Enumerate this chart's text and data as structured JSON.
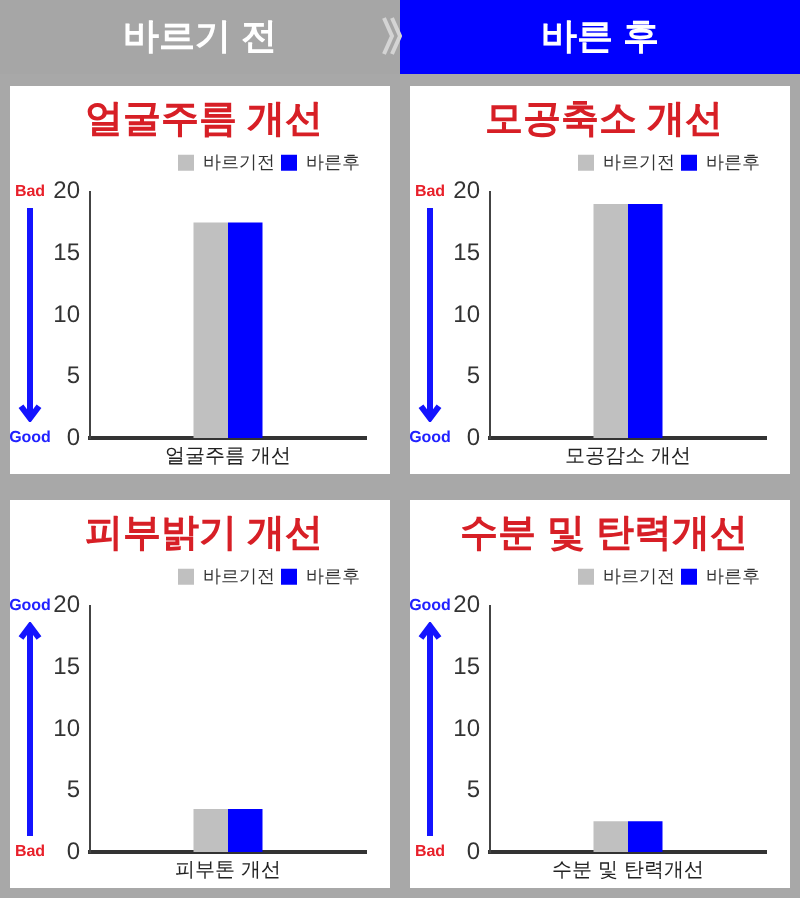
{
  "chart_data": [
    {
      "type": "other",
      "annotations": [
        "바르기 전",
        "바른 후"
      ]
    },
    {
      "type": "bar",
      "title": "얼굴주름 개선",
      "categories": [
        "얼굴주름 개선"
      ],
      "series": [
        {
          "name": "바르기전",
          "color": "#c0c0c0",
          "values": [
            17.5
          ]
        },
        {
          "name": "바른후",
          "color": "#0000ff",
          "values": [
            17.5
          ]
        }
      ],
      "ylim": [
        0,
        20
      ],
      "yticks": [
        0,
        5,
        10,
        15,
        20
      ],
      "grid": false,
      "legend": "top right",
      "annotations": [
        "Bad",
        "Good"
      ]
    },
    {
      "type": "bar",
      "title": "모공축소 개선",
      "categories": [
        "모공감소 개선"
      ],
      "series": [
        {
          "name": "바르기전",
          "color": "#c0c0c0",
          "values": [
            19
          ]
        },
        {
          "name": "바른후",
          "color": "#0000ff",
          "values": [
            19
          ]
        }
      ],
      "ylim": [
        0,
        20
      ],
      "yticks": [
        0,
        5,
        10,
        15,
        20
      ],
      "grid": false,
      "legend": "top right",
      "annotations": [
        "Bad",
        "Good"
      ]
    },
    {
      "type": "bar",
      "title": "피부밝기 개선",
      "categories": [
        "피부톤 개선"
      ],
      "series": [
        {
          "name": "바르기전",
          "color": "#c0c0c0",
          "values": [
            3.5
          ]
        },
        {
          "name": "바른후",
          "color": "#0000ff",
          "values": [
            3.5
          ]
        }
      ],
      "ylim": [
        0,
        20
      ],
      "yticks": [
        0,
        5,
        10,
        15,
        20
      ],
      "grid": false,
      "legend": "top right",
      "annotations": [
        "Good",
        "Bad"
      ]
    },
    {
      "type": "bar",
      "title": "수분 및 탄력개선",
      "categories": [
        "수분 및 탄력개선"
      ],
      "series": [
        {
          "name": "바르기전",
          "color": "#c0c0c0",
          "values": [
            2.5
          ]
        },
        {
          "name": "바른후",
          "color": "#0000ff",
          "values": [
            2.5
          ]
        }
      ],
      "ylim": [
        0,
        20
      ],
      "yticks": [
        0,
        5,
        10,
        15,
        20
      ],
      "grid": false,
      "legend": "top right",
      "annotations": [
        "Good",
        "Bad"
      ]
    }
  ]
}
